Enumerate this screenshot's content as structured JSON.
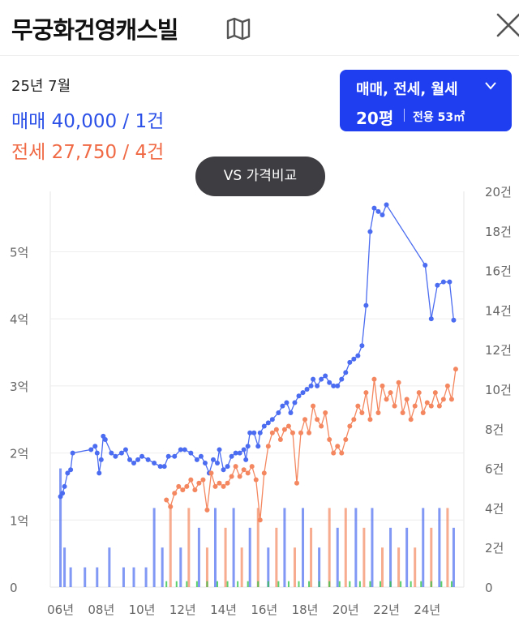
{
  "header": {
    "title": "무궁화건영캐스빌"
  },
  "summary": {
    "period": "25년 7월",
    "sale": "매매 40,000 / 1건",
    "jeonse": "전세 27,750 / 4건"
  },
  "filter": {
    "types": "매매, 전세, 월세",
    "size": "20평",
    "area": "전용 53㎡"
  },
  "compare_button": "VS 가격비교",
  "colors": {
    "sale": "#4b6cf0",
    "jeonse": "#f4875f",
    "rent": "#35c44a",
    "accent": "#1e3ef0"
  },
  "chart_data": {
    "type": "line",
    "x_axis": {
      "range": [
        2005.5,
        2025.8
      ],
      "ticks": [
        "06년",
        "08년",
        "10년",
        "12년",
        "14년",
        "16년",
        "18년",
        "20년",
        "22년",
        "24년"
      ]
    },
    "y_left": {
      "range": [
        0,
        5.9
      ],
      "ticks": [
        "0",
        "1억",
        "2억",
        "3억",
        "4억",
        "5억"
      ]
    },
    "y_right": {
      "range": [
        0,
        20
      ],
      "ticks": [
        "0",
        "2건",
        "4건",
        "6건",
        "8건",
        "10건",
        "12건",
        "14건",
        "16건",
        "18건",
        "20건"
      ]
    },
    "grid": true,
    "series": [
      {
        "name": "매매",
        "axis": "left",
        "points": [
          [
            2006.0,
            1.35
          ],
          [
            2006.1,
            1.4
          ],
          [
            2006.2,
            1.5
          ],
          [
            2006.35,
            1.7
          ],
          [
            2006.5,
            1.75
          ],
          [
            2006.6,
            2.0
          ],
          [
            2007.5,
            2.05
          ],
          [
            2007.7,
            2.1
          ],
          [
            2007.8,
            2.0
          ],
          [
            2007.9,
            1.7
          ],
          [
            2008.0,
            1.9
          ],
          [
            2008.1,
            2.25
          ],
          [
            2008.2,
            2.2
          ],
          [
            2008.5,
            2.0
          ],
          [
            2008.7,
            1.95
          ],
          [
            2009.0,
            2.0
          ],
          [
            2009.2,
            2.05
          ],
          [
            2009.4,
            1.9
          ],
          [
            2009.6,
            1.85
          ],
          [
            2009.8,
            1.9
          ],
          [
            2010.0,
            1.95
          ],
          [
            2010.3,
            1.9
          ],
          [
            2010.6,
            1.85
          ],
          [
            2010.9,
            1.8
          ],
          [
            2011.1,
            1.8
          ],
          [
            2011.3,
            1.95
          ],
          [
            2011.6,
            1.95
          ],
          [
            2011.9,
            2.05
          ],
          [
            2012.1,
            2.05
          ],
          [
            2012.4,
            2.0
          ],
          [
            2012.7,
            1.9
          ],
          [
            2012.9,
            1.95
          ],
          [
            2013.1,
            1.85
          ],
          [
            2013.3,
            1.7
          ],
          [
            2013.5,
            1.9
          ],
          [
            2013.7,
            1.85
          ],
          [
            2013.8,
            2.05
          ],
          [
            2014.0,
            1.75
          ],
          [
            2014.2,
            1.8
          ],
          [
            2014.4,
            1.95
          ],
          [
            2014.6,
            2.0
          ],
          [
            2014.8,
            2.0
          ],
          [
            2015.0,
            2.05
          ],
          [
            2015.1,
            1.9
          ],
          [
            2015.2,
            2.1
          ],
          [
            2015.3,
            2.3
          ],
          [
            2015.5,
            2.3
          ],
          [
            2015.7,
            2.1
          ],
          [
            2015.8,
            2.3
          ],
          [
            2016.0,
            2.4
          ],
          [
            2016.2,
            2.45
          ],
          [
            2016.4,
            2.5
          ],
          [
            2016.7,
            2.6
          ],
          [
            2016.9,
            2.7
          ],
          [
            2017.1,
            2.75
          ],
          [
            2017.3,
            2.6
          ],
          [
            2017.5,
            2.75
          ],
          [
            2017.7,
            2.85
          ],
          [
            2017.9,
            2.9
          ],
          [
            2018.1,
            2.95
          ],
          [
            2018.3,
            3.0
          ],
          [
            2018.4,
            3.1
          ],
          [
            2018.6,
            3.0
          ],
          [
            2018.8,
            3.1
          ],
          [
            2019.0,
            3.15
          ],
          [
            2019.2,
            3.05
          ],
          [
            2019.4,
            3.0
          ],
          [
            2019.6,
            3.0
          ],
          [
            2019.8,
            3.1
          ],
          [
            2020.0,
            3.2
          ],
          [
            2020.2,
            3.35
          ],
          [
            2020.4,
            3.4
          ],
          [
            2020.6,
            3.45
          ],
          [
            2020.8,
            3.6
          ],
          [
            2021.0,
            4.2
          ],
          [
            2021.2,
            5.3
          ],
          [
            2021.4,
            5.65
          ],
          [
            2021.6,
            5.6
          ],
          [
            2021.8,
            5.55
          ],
          [
            2022.0,
            5.7
          ],
          [
            2023.9,
            4.8
          ],
          [
            2024.2,
            4.0
          ],
          [
            2024.5,
            4.5
          ],
          [
            2024.8,
            4.55
          ],
          [
            2025.1,
            4.55
          ],
          [
            2025.3,
            3.98
          ]
        ]
      },
      {
        "name": "전세",
        "axis": "left",
        "points": [
          [
            2011.2,
            1.3
          ],
          [
            2011.4,
            1.2
          ],
          [
            2011.6,
            1.4
          ],
          [
            2011.8,
            1.5
          ],
          [
            2012.0,
            1.45
          ],
          [
            2012.2,
            1.5
          ],
          [
            2012.4,
            1.6
          ],
          [
            2012.6,
            1.45
          ],
          [
            2012.8,
            1.55
          ],
          [
            2013.0,
            1.6
          ],
          [
            2013.2,
            1.15
          ],
          [
            2013.4,
            1.7
          ],
          [
            2013.6,
            1.5
          ],
          [
            2013.8,
            1.55
          ],
          [
            2014.0,
            1.5
          ],
          [
            2014.2,
            1.55
          ],
          [
            2014.4,
            1.65
          ],
          [
            2014.6,
            1.8
          ],
          [
            2014.8,
            1.65
          ],
          [
            2015.0,
            1.75
          ],
          [
            2015.2,
            1.7
          ],
          [
            2015.4,
            1.8
          ],
          [
            2015.6,
            1.6
          ],
          [
            2015.8,
            1.0
          ],
          [
            2016.0,
            1.7
          ],
          [
            2016.2,
            2.1
          ],
          [
            2016.4,
            2.3
          ],
          [
            2016.6,
            2.35
          ],
          [
            2016.8,
            2.2
          ],
          [
            2017.0,
            2.35
          ],
          [
            2017.2,
            2.4
          ],
          [
            2017.4,
            2.3
          ],
          [
            2017.6,
            1.55
          ],
          [
            2017.8,
            2.3
          ],
          [
            2018.0,
            2.5
          ],
          [
            2018.2,
            2.3
          ],
          [
            2018.4,
            2.7
          ],
          [
            2018.6,
            2.5
          ],
          [
            2018.8,
            2.4
          ],
          [
            2019.0,
            2.6
          ],
          [
            2019.2,
            2.2
          ],
          [
            2019.4,
            2.0
          ],
          [
            2019.6,
            2.1
          ],
          [
            2019.8,
            2.0
          ],
          [
            2020.0,
            2.2
          ],
          [
            2020.2,
            2.4
          ],
          [
            2020.4,
            2.5
          ],
          [
            2020.6,
            2.7
          ],
          [
            2020.8,
            2.6
          ],
          [
            2021.0,
            2.9
          ],
          [
            2021.2,
            2.5
          ],
          [
            2021.4,
            3.1
          ],
          [
            2021.6,
            2.6
          ],
          [
            2021.8,
            3.0
          ],
          [
            2022.0,
            2.8
          ],
          [
            2022.2,
            2.9
          ],
          [
            2022.4,
            2.7
          ],
          [
            2022.6,
            3.05
          ],
          [
            2022.8,
            2.6
          ],
          [
            2023.0,
            2.8
          ],
          [
            2023.2,
            2.5
          ],
          [
            2023.4,
            2.7
          ],
          [
            2023.6,
            2.9
          ],
          [
            2023.8,
            2.6
          ],
          [
            2024.0,
            2.75
          ],
          [
            2024.2,
            2.7
          ],
          [
            2024.4,
            2.9
          ],
          [
            2024.6,
            2.7
          ],
          [
            2024.8,
            2.8
          ],
          [
            2025.0,
            3.0
          ],
          [
            2025.2,
            2.8
          ],
          [
            2025.4,
            3.25
          ]
        ]
      },
      {
        "name": "거래량",
        "type": "bar",
        "axis": "right",
        "bars": [
          [
            2006.0,
            6
          ],
          [
            2006.2,
            2
          ],
          [
            2006.5,
            1
          ],
          [
            2007.2,
            1
          ],
          [
            2007.8,
            1
          ],
          [
            2008.4,
            2
          ],
          [
            2009.1,
            1
          ],
          [
            2009.6,
            1
          ],
          [
            2010.2,
            1
          ],
          [
            2010.6,
            4
          ],
          [
            2011.0,
            2
          ],
          [
            2011.4,
            4
          ],
          [
            2011.9,
            2
          ],
          [
            2012.3,
            4
          ],
          [
            2012.8,
            3
          ],
          [
            2013.2,
            2
          ],
          [
            2013.6,
            4
          ],
          [
            2014.1,
            3
          ],
          [
            2014.5,
            4
          ],
          [
            2014.9,
            2
          ],
          [
            2015.3,
            3
          ],
          [
            2015.7,
            4
          ],
          [
            2016.2,
            2
          ],
          [
            2016.6,
            3
          ],
          [
            2017.0,
            4
          ],
          [
            2017.5,
            2
          ],
          [
            2017.9,
            4
          ],
          [
            2018.3,
            3
          ],
          [
            2018.7,
            2
          ],
          [
            2019.2,
            4
          ],
          [
            2019.6,
            3
          ],
          [
            2020.0,
            4
          ],
          [
            2020.5,
            4
          ],
          [
            2020.9,
            3
          ],
          [
            2021.3,
            4
          ],
          [
            2021.8,
            2
          ],
          [
            2022.2,
            3
          ],
          [
            2022.6,
            2
          ],
          [
            2023.0,
            3
          ],
          [
            2023.4,
            2
          ],
          [
            2023.8,
            4
          ],
          [
            2024.2,
            3
          ],
          [
            2024.6,
            4
          ],
          [
            2025.0,
            4
          ],
          [
            2025.3,
            3
          ]
        ]
      }
    ]
  }
}
